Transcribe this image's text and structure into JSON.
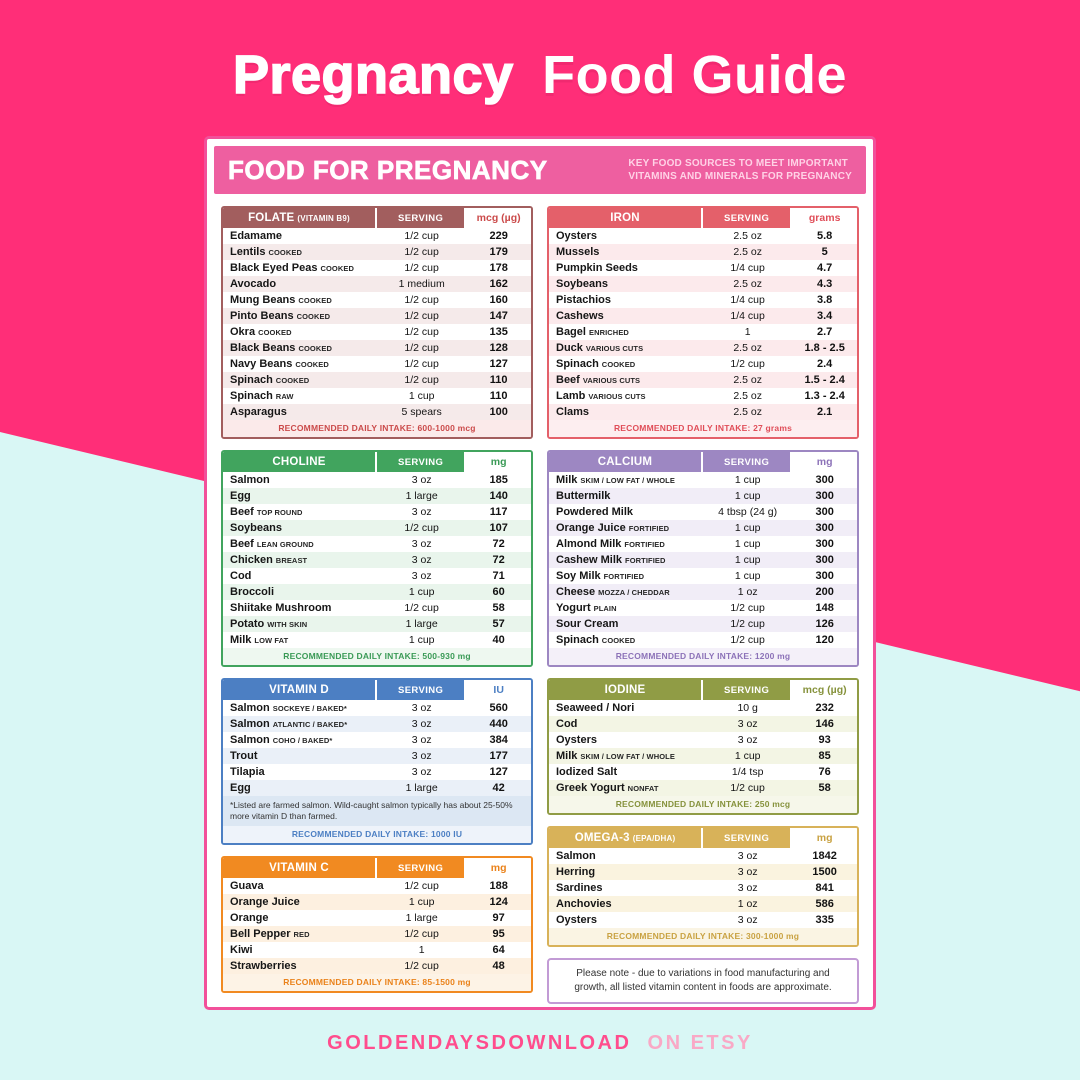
{
  "page": {
    "title_bold": "Pregnancy",
    "title_regular": "Food Guide",
    "footer_brand": "GOLDENDAYSDOWNLOAD",
    "footer_suffix": "ON ETSY"
  },
  "colors": {
    "background_pink": "#ff2e78",
    "background_cyan": "#d9f7f5",
    "card_border": "#f2509a",
    "card_header": "#ee5fa0",
    "card_header_subtitle": "#ffd2e6",
    "footer_brand": "#ff4d8d",
    "footer_suffix": "#f9a9c6",
    "note_border": "#c29bd5"
  },
  "card": {
    "header_title": "FOOD FOR PREGNANCY",
    "header_subtitle_line1": "KEY FOOD SOURCES TO MEET IMPORTANT",
    "header_subtitle_line2": "VITAMINS AND MINERALS FOR PREGNANCY"
  },
  "layout": {
    "left": [
      "folate",
      "choline",
      "vitamin_d",
      "vitamin_c"
    ],
    "right": [
      "iron",
      "calcium",
      "iodine",
      "omega_3"
    ]
  },
  "tables": {
    "folate": {
      "title": "FOLATE",
      "title_suffix": "(VITAMIN B9)",
      "serving_label": "SERVING",
      "unit_label": "mcg (µg)",
      "color": "#a25e5e",
      "accent": "#cb4a4a",
      "tint": "#f5eaea",
      "rdi_bg": "#fbeaea",
      "rdi_label": "RECOMMENDED DAILY INTAKE:",
      "rdi_value": "600-1000 mcg",
      "rows": [
        {
          "name": "Edamame",
          "qualifier": "",
          "serving": "1/2 cup",
          "value": "229"
        },
        {
          "name": "Lentils",
          "qualifier": "COOKED",
          "serving": "1/2 cup",
          "value": "179"
        },
        {
          "name": "Black Eyed Peas",
          "qualifier": "COOKED",
          "serving": "1/2 cup",
          "value": "178"
        },
        {
          "name": "Avocado",
          "qualifier": "",
          "serving": "1 medium",
          "value": "162"
        },
        {
          "name": "Mung Beans",
          "qualifier": "COOKED",
          "serving": "1/2 cup",
          "value": "160"
        },
        {
          "name": "Pinto Beans",
          "qualifier": "COOKED",
          "serving": "1/2 cup",
          "value": "147"
        },
        {
          "name": "Okra",
          "qualifier": "COOKED",
          "serving": "1/2 cup",
          "value": "135"
        },
        {
          "name": "Black Beans",
          "qualifier": "COOKED",
          "serving": "1/2 cup",
          "value": "128"
        },
        {
          "name": "Navy Beans",
          "qualifier": "COOKED",
          "serving": "1/2 cup",
          "value": "127"
        },
        {
          "name": "Spinach",
          "qualifier": "COOKED",
          "serving": "1/2 cup",
          "value": "110"
        },
        {
          "name": "Spinach",
          "qualifier": "RAW",
          "serving": "1 cup",
          "value": "110"
        },
        {
          "name": "Asparagus",
          "qualifier": "",
          "serving": "5 spears",
          "value": "100"
        }
      ]
    },
    "choline": {
      "title": "CHOLINE",
      "title_suffix": "",
      "serving_label": "SERVING",
      "unit_label": "mg",
      "color": "#41a45e",
      "accent": "#3a9a56",
      "tint": "#e9f5ec",
      "rdi_bg": "#eef8f0",
      "rdi_label": "RECOMMENDED DAILY INTAKE:",
      "rdi_value": "500-930 mg",
      "rows": [
        {
          "name": "Salmon",
          "qualifier": "",
          "serving": "3 oz",
          "value": "185"
        },
        {
          "name": "Egg",
          "qualifier": "",
          "serving": "1 large",
          "value": "140"
        },
        {
          "name": "Beef",
          "qualifier": "TOP ROUND",
          "serving": "3 oz",
          "value": "117"
        },
        {
          "name": "Soybeans",
          "qualifier": "",
          "serving": "1/2 cup",
          "value": "107"
        },
        {
          "name": "Beef",
          "qualifier": "LEAN GROUND",
          "serving": "3 oz",
          "value": "72"
        },
        {
          "name": "Chicken",
          "qualifier": "BREAST",
          "serving": "3 oz",
          "value": "72"
        },
        {
          "name": "Cod",
          "qualifier": "",
          "serving": "3 oz",
          "value": "71"
        },
        {
          "name": "Broccoli",
          "qualifier": "",
          "serving": "1 cup",
          "value": "60"
        },
        {
          "name": "Shiitake Mushroom",
          "qualifier": "",
          "serving": "1/2 cup",
          "value": "58"
        },
        {
          "name": "Potato",
          "qualifier": "WITH SKIN",
          "serving": "1 large",
          "value": "57"
        },
        {
          "name": "Milk",
          "qualifier": "LOW FAT",
          "serving": "1 cup",
          "value": "40"
        }
      ]
    },
    "vitamin_d": {
      "title": "VITAMIN D",
      "title_suffix": "",
      "serving_label": "SERVING",
      "unit_label": "IU",
      "color": "#4c7fc3",
      "accent": "#4c7fc3",
      "tint": "#eaf0f8",
      "rdi_bg": "#eef3fa",
      "note": "*Listed are farmed salmon. Wild-caught salmon typically has about 25-50% more vitamin D than farmed.",
      "note_bg": "#dce7f3",
      "rdi_label": "RECOMMENDED DAILY INTAKE:",
      "rdi_value": "1000 IU",
      "rows": [
        {
          "name": "Salmon",
          "qualifier": "SOCKEYE / BAKED*",
          "serving": "3 oz",
          "value": "560"
        },
        {
          "name": "Salmon",
          "qualifier": "ATLANTIC / BAKED*",
          "serving": "3 oz",
          "value": "440"
        },
        {
          "name": "Salmon",
          "qualifier": "COHO / BAKED*",
          "serving": "3 oz",
          "value": "384"
        },
        {
          "name": "Trout",
          "qualifier": "",
          "serving": "3 oz",
          "value": "177"
        },
        {
          "name": "Tilapia",
          "qualifier": "",
          "serving": "3 oz",
          "value": "127"
        },
        {
          "name": "Egg",
          "qualifier": "",
          "serving": "1 large",
          "value": "42"
        }
      ]
    },
    "vitamin_c": {
      "title": "VITAMIN C",
      "title_suffix": "",
      "serving_label": "SERVING",
      "unit_label": "mg",
      "color": "#f18a21",
      "accent": "#ea821a",
      "tint": "#fdf0e0",
      "rdi_bg": "#fdf3e6",
      "rdi_label": "RECOMMENDED DAILY INTAKE:",
      "rdi_value": "85-1500 mg",
      "rows": [
        {
          "name": "Guava",
          "qualifier": "",
          "serving": "1/2 cup",
          "value": "188"
        },
        {
          "name": "Orange Juice",
          "qualifier": "",
          "serving": "1 cup",
          "value": "124"
        },
        {
          "name": "Orange",
          "qualifier": "",
          "serving": "1 large",
          "value": "97"
        },
        {
          "name": "Bell Pepper",
          "qualifier": "RED",
          "serving": "1/2 cup",
          "value": "95"
        },
        {
          "name": "Kiwi",
          "qualifier": "",
          "serving": "1",
          "value": "64"
        },
        {
          "name": "Strawberries",
          "qualifier": "",
          "serving": "1/2 cup",
          "value": "48"
        }
      ]
    },
    "iron": {
      "title": "IRON",
      "title_suffix": "",
      "serving_label": "SERVING",
      "unit_label": "grams",
      "color": "#e4606a",
      "accent": "#e04e59",
      "tint": "#fceaec",
      "rdi_bg": "#fdeef0",
      "rdi_label": "RECOMMENDED DAILY INTAKE:",
      "rdi_value": "27 grams",
      "rows": [
        {
          "name": "Oysters",
          "qualifier": "",
          "serving": "2.5 oz",
          "value": "5.8"
        },
        {
          "name": "Mussels",
          "qualifier": "",
          "serving": "2.5 oz",
          "value": "5"
        },
        {
          "name": "Pumpkin Seeds",
          "qualifier": "",
          "serving": "1/4 cup",
          "value": "4.7"
        },
        {
          "name": "Soybeans",
          "qualifier": "",
          "serving": "2.5 oz",
          "value": "4.3"
        },
        {
          "name": "Pistachios",
          "qualifier": "",
          "serving": "1/4 cup",
          "value": "3.8"
        },
        {
          "name": "Cashews",
          "qualifier": "",
          "serving": "1/4 cup",
          "value": "3.4"
        },
        {
          "name": "Bagel",
          "qualifier": "ENRICHED",
          "serving": "1",
          "value": "2.7"
        },
        {
          "name": "Duck",
          "qualifier": "VARIOUS CUTS",
          "serving": "2.5 oz",
          "value": "1.8 - 2.5"
        },
        {
          "name": "Spinach",
          "qualifier": "COOKED",
          "serving": "1/2 cup",
          "value": "2.4"
        },
        {
          "name": "Beef",
          "qualifier": "VARIOUS CUTS",
          "serving": "2.5 oz",
          "value": "1.5 - 2.4"
        },
        {
          "name": "Lamb",
          "qualifier": "VARIOUS CUTS",
          "serving": "2.5 oz",
          "value": "1.3 - 2.4"
        },
        {
          "name": "Clams",
          "qualifier": "",
          "serving": "2.5 oz",
          "value": "2.1"
        }
      ]
    },
    "calcium": {
      "title": "CALCIUM",
      "title_suffix": "",
      "serving_label": "SERVING",
      "unit_label": "mg",
      "color": "#9d87c2",
      "accent": "#8c72b8",
      "tint": "#f1edf7",
      "rdi_bg": "#f4f0f9",
      "rdi_label": "RECOMMENDED DAILY INTAKE:",
      "rdi_value": "1200 mg",
      "rows": [
        {
          "name": "Milk",
          "qualifier": "SKIM / LOW FAT / WHOLE",
          "serving": "1 cup",
          "value": "300"
        },
        {
          "name": "Buttermilk",
          "qualifier": "",
          "serving": "1 cup",
          "value": "300"
        },
        {
          "name": "Powdered Milk",
          "qualifier": "",
          "serving": "4 tbsp (24 g)",
          "value": "300"
        },
        {
          "name": "Orange Juice",
          "qualifier": "FORTIFIED",
          "serving": "1 cup",
          "value": "300"
        },
        {
          "name": "Almond Milk",
          "qualifier": "FORTIFIED",
          "serving": "1 cup",
          "value": "300"
        },
        {
          "name": "Cashew Milk",
          "qualifier": "FORTIFIED",
          "serving": "1 cup",
          "value": "300"
        },
        {
          "name": "Soy Milk",
          "qualifier": "FORTIFIED",
          "serving": "1 cup",
          "value": "300"
        },
        {
          "name": "Cheese",
          "qualifier": "MOZZA / CHEDDAR",
          "serving": "1 oz",
          "value": "200"
        },
        {
          "name": "Yogurt",
          "qualifier": "PLAIN",
          "serving": "1/2 cup",
          "value": "148"
        },
        {
          "name": "Sour Cream",
          "qualifier": "",
          "serving": "1/2 cup",
          "value": "126"
        },
        {
          "name": "Spinach",
          "qualifier": "COOKED",
          "serving": "1/2 cup",
          "value": "120"
        }
      ]
    },
    "iodine": {
      "title": "IODINE",
      "title_suffix": "",
      "serving_label": "SERVING",
      "unit_label": "mcg (µg)",
      "color": "#909c45",
      "accent": "#86923c",
      "tint": "#f3f5e4",
      "rdi_bg": "#f6f7ea",
      "rdi_label": "RECOMMENDED DAILY INTAKE:",
      "rdi_value": "250 mcg",
      "rows": [
        {
          "name": "Seaweed / Nori",
          "qualifier": "",
          "serving": "10 g",
          "value": "232"
        },
        {
          "name": "Cod",
          "qualifier": "",
          "serving": "3 oz",
          "value": "146"
        },
        {
          "name": "Oysters",
          "qualifier": "",
          "serving": "3 oz",
          "value": "93"
        },
        {
          "name": "Milk",
          "qualifier": "SKIM / LOW FAT / WHOLE",
          "serving": "1 cup",
          "value": "85"
        },
        {
          "name": "Iodized Salt",
          "qualifier": "",
          "serving": "1/4 tsp",
          "value": "76"
        },
        {
          "name": "Greek Yogurt",
          "qualifier": "NONFAT",
          "serving": "1/2 cup",
          "value": "58"
        }
      ]
    },
    "omega_3": {
      "title": "OMEGA-3",
      "title_suffix": "(EPA/DHA)",
      "serving_label": "SERVING",
      "unit_label": "mg",
      "color": "#d8b259",
      "accent": "#c9a242",
      "tint": "#faf3df",
      "rdi_bg": "#faf4e3",
      "rdi_label": "RECOMMENDED DAILY INTAKE:",
      "rdi_value": "300-1000 mg",
      "rows": [
        {
          "name": "Salmon",
          "qualifier": "",
          "serving": "3 oz",
          "value": "1842"
        },
        {
          "name": "Herring",
          "qualifier": "",
          "serving": "3 oz",
          "value": "1500"
        },
        {
          "name": "Sardines",
          "qualifier": "",
          "serving": "3 oz",
          "value": "841"
        },
        {
          "name": "Anchovies",
          "qualifier": "",
          "serving": "1 oz",
          "value": "586"
        },
        {
          "name": "Oysters",
          "qualifier": "",
          "serving": "3 oz",
          "value": "335"
        }
      ]
    }
  },
  "note_box": {
    "text": "Please note - due to variations in food manufacturing and growth, all listed vitamin content in foods are approximate."
  }
}
